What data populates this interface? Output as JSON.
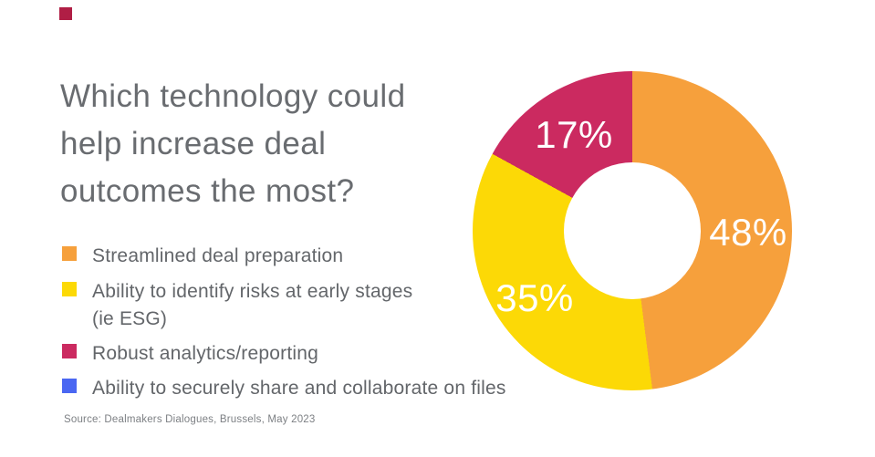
{
  "brand_mark": {
    "color": "#B01E45",
    "name": "red-square-logo-mark"
  },
  "title": {
    "lines": [
      "Which technology could",
      "help increase deal",
      "outcomes the most?"
    ],
    "color": "#696C70"
  },
  "legend": {
    "items": [
      {
        "line1": "Streamlined deal preparation",
        "line2": "",
        "color": "#F6A03C"
      },
      {
        "line1": "Ability to identify risks at early stages",
        "line2": "(ie ESG)",
        "color": "#FCD906"
      },
      {
        "line1": "Robust analytics/reporting",
        "line2": "",
        "color": "#CB2A60"
      },
      {
        "line1": "Ability to securely share and collaborate on files",
        "line2": "",
        "color": "#4A67F2"
      }
    ],
    "text_color": "#63666A"
  },
  "chart_data": {
    "type": "pie",
    "subtype": "donut",
    "title": "Which technology could help increase deal outcomes the most?",
    "unit": "%",
    "start": "12 o'clock, clockwise",
    "legend_position": "left",
    "inner_radius_ratio": 0.43,
    "categories": [
      "Streamlined deal preparation",
      "Ability to identify risks at early stages (ie ESG)",
      "Robust analytics/reporting",
      "Ability to securely share and collaborate on files"
    ],
    "values": [
      48,
      35,
      17,
      0
    ],
    "slices": [
      {
        "label": "Streamlined deal preparation",
        "value": 48,
        "color": "#F6A03C",
        "data_label": "48%"
      },
      {
        "label": "Ability to identify risks at early stages (ie ESG)",
        "value": 35,
        "color": "#FCD906",
        "data_label": "35%"
      },
      {
        "label": "Robust analytics/reporting",
        "value": 17,
        "color": "#CB2A60",
        "data_label": "17%"
      },
      {
        "label": "Ability to securely share and collaborate on files",
        "value": 0,
        "color": "#4A67F2",
        "data_label": ""
      }
    ],
    "data_label_color": "#ffffff"
  },
  "source": {
    "text": "Source: Dealmakers Dialogues, Brussels, May 2023"
  }
}
